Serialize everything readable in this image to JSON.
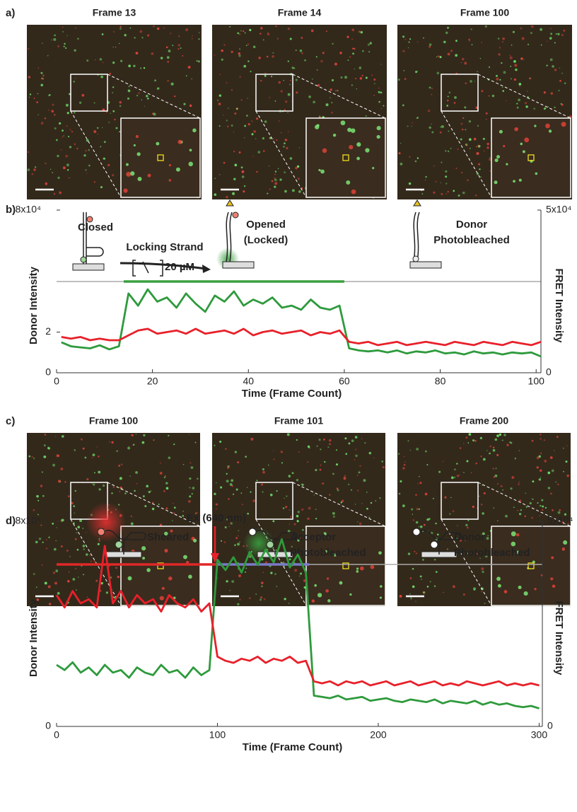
{
  "panel_a": {
    "label": "a)",
    "frames": [
      "Frame 13",
      "Frame 14",
      "Frame 100"
    ]
  },
  "panel_c": {
    "label": "c)",
    "frames": [
      "Frame 100",
      "Frame 101",
      "Frame 200"
    ]
  },
  "chart_data": [
    {
      "type": "line",
      "label": "b)",
      "x_label": "Time (Frame Count)",
      "y_label": "Donor Intensity",
      "y2_label": "FRET Intensity",
      "annotations": [
        {
          "text": "Closed"
        },
        {
          "text": "Locking Strand"
        },
        {
          "text": "20 µM"
        },
        {
          "text": "Opened"
        },
        {
          "text": "(Locked)"
        },
        {
          "text": "Donor"
        },
        {
          "text": "Photobleached"
        }
      ],
      "states": [
        {
          "start": 14,
          "end": 60,
          "color": "#3aa040"
        }
      ],
      "x": [
        1,
        3,
        5,
        7,
        9,
        11,
        13,
        15,
        17,
        19,
        21,
        23,
        25,
        27,
        29,
        31,
        33,
        35,
        37,
        39,
        41,
        43,
        45,
        47,
        49,
        51,
        53,
        55,
        57,
        59,
        61,
        63,
        65,
        67,
        69,
        71,
        73,
        75,
        77,
        79,
        81,
        83,
        85,
        87,
        89,
        91,
        93,
        95,
        97,
        99,
        101
      ],
      "xlim": [
        0,
        101
      ],
      "xticks": [
        0,
        20,
        40,
        60,
        80,
        100
      ],
      "ylim": [
        0,
        8
      ],
      "yticks": [
        0,
        2,
        {
          "value": 8,
          "label": "8x10⁴"
        }
      ],
      "y2lim": [
        0,
        5
      ],
      "y2ticks": [
        0,
        {
          "value": 5,
          "label": "5x10⁴"
        }
      ],
      "series": [
        {
          "color": "#2e9a3c",
          "values": [
            1.5,
            1.3,
            1.25,
            1.2,
            1.35,
            1.15,
            1.3,
            3.9,
            3.3,
            4.1,
            3.5,
            3.7,
            3.2,
            3.9,
            3.4,
            3.0,
            3.8,
            3.5,
            4.0,
            3.3,
            3.6,
            3.4,
            3.7,
            3.2,
            3.3,
            3.1,
            3.6,
            3.2,
            3.1,
            3.3,
            1.2,
            1.1,
            1.05,
            1.1,
            1.0,
            1.1,
            0.95,
            1.05,
            1.0,
            1.1,
            0.95,
            1.0,
            0.9,
            1.05,
            0.95,
            1.0,
            0.9,
            1.0,
            0.95,
            1.0,
            0.8
          ]
        },
        {
          "color": "#e8202a",
          "axis": "y2",
          "values": [
            1.1,
            1.05,
            1.1,
            1.0,
            1.05,
            1.0,
            1.0,
            1.15,
            1.3,
            1.35,
            1.2,
            1.25,
            1.3,
            1.2,
            1.35,
            1.2,
            1.25,
            1.3,
            1.2,
            1.35,
            1.15,
            1.25,
            1.3,
            1.2,
            1.25,
            1.3,
            1.15,
            1.25,
            1.2,
            1.3,
            0.95,
            0.9,
            0.95,
            0.85,
            0.9,
            0.95,
            0.85,
            0.9,
            0.95,
            0.9,
            0.85,
            0.95,
            0.9,
            0.85,
            0.95,
            0.9,
            0.85,
            0.95,
            0.9,
            0.85,
            0.95
          ]
        }
      ]
    },
    {
      "type": "line",
      "label": "d)",
      "x_label": "Time (Frame Count)",
      "y_label": "Donor Intensity",
      "y2_label": "FRET Intensity",
      "annotations": [
        {
          "text": "Ex (640 nm)",
          "color": "#e8202a"
        },
        {
          "text": "Sheared"
        },
        {
          "text": "Acceptor"
        },
        {
          "text": "Photobleached"
        },
        {
          "text": "Donor"
        },
        {
          "text": "Photobleached"
        }
      ],
      "states": [
        {
          "start": 0,
          "end": 100,
          "color": "#e02828"
        },
        {
          "start": 100,
          "end": 157,
          "color": "#7a7ac8"
        }
      ],
      "x": [
        0,
        5,
        10,
        15,
        20,
        25,
        30,
        35,
        40,
        45,
        50,
        55,
        60,
        65,
        70,
        75,
        80,
        85,
        90,
        95,
        100,
        105,
        110,
        115,
        120,
        125,
        130,
        135,
        140,
        145,
        150,
        155,
        160,
        165,
        170,
        175,
        180,
        185,
        190,
        195,
        200,
        205,
        210,
        215,
        220,
        225,
        230,
        235,
        240,
        245,
        250,
        255,
        260,
        265,
        270,
        275,
        280,
        285,
        290,
        295,
        300
      ],
      "xlim": [
        0,
        302
      ],
      "xticks": [
        0,
        100,
        200,
        300
      ],
      "ylim": [
        0,
        8
      ],
      "yticks": [
        0,
        {
          "value": 8,
          "label": "8x10⁴"
        }
      ],
      "y2lim": [
        0,
        5
      ],
      "y2ticks": [
        0,
        {
          "value": 5,
          "label": "5x10⁴"
        }
      ],
      "series": [
        {
          "color": "#2e9a3c",
          "values": [
            2.4,
            2.2,
            2.5,
            2.1,
            2.3,
            2.0,
            2.4,
            2.1,
            2.2,
            1.9,
            2.3,
            2.1,
            2.0,
            2.4,
            2.1,
            2.2,
            1.9,
            2.3,
            2.0,
            2.2,
            6.5,
            6.1,
            6.6,
            6.0,
            6.8,
            6.3,
            6.9,
            6.4,
            7.3,
            6.2,
            6.7,
            6.0,
            1.2,
            1.15,
            1.1,
            1.2,
            1.05,
            1.1,
            1.15,
            1.0,
            1.05,
            1.1,
            1.0,
            0.95,
            1.05,
            1.0,
            0.95,
            1.05,
            0.9,
            1.0,
            0.95,
            0.9,
            1.0,
            0.85,
            0.95,
            0.85,
            0.9,
            0.8,
            0.75,
            0.8,
            0.7
          ]
        },
        {
          "color": "#e8202a",
          "axis": "y2",
          "values": [
            3.2,
            2.9,
            3.3,
            3.0,
            3.1,
            2.9,
            4.4,
            3.0,
            3.3,
            2.9,
            3.2,
            3.0,
            3.1,
            2.8,
            3.2,
            3.0,
            2.9,
            3.1,
            2.8,
            3.0,
            1.7,
            1.6,
            1.55,
            1.65,
            1.6,
            1.7,
            1.55,
            1.65,
            1.6,
            1.7,
            1.55,
            1.6,
            1.1,
            1.05,
            1.1,
            1.0,
            1.1,
            1.05,
            1.1,
            1.0,
            1.05,
            1.1,
            1.0,
            1.05,
            1.1,
            1.0,
            1.05,
            1.1,
            1.0,
            1.05,
            1.0,
            1.1,
            1.05,
            1.0,
            1.05,
            1.1,
            1.0,
            1.05,
            1.0,
            1.05,
            1.0
          ]
        }
      ]
    }
  ]
}
